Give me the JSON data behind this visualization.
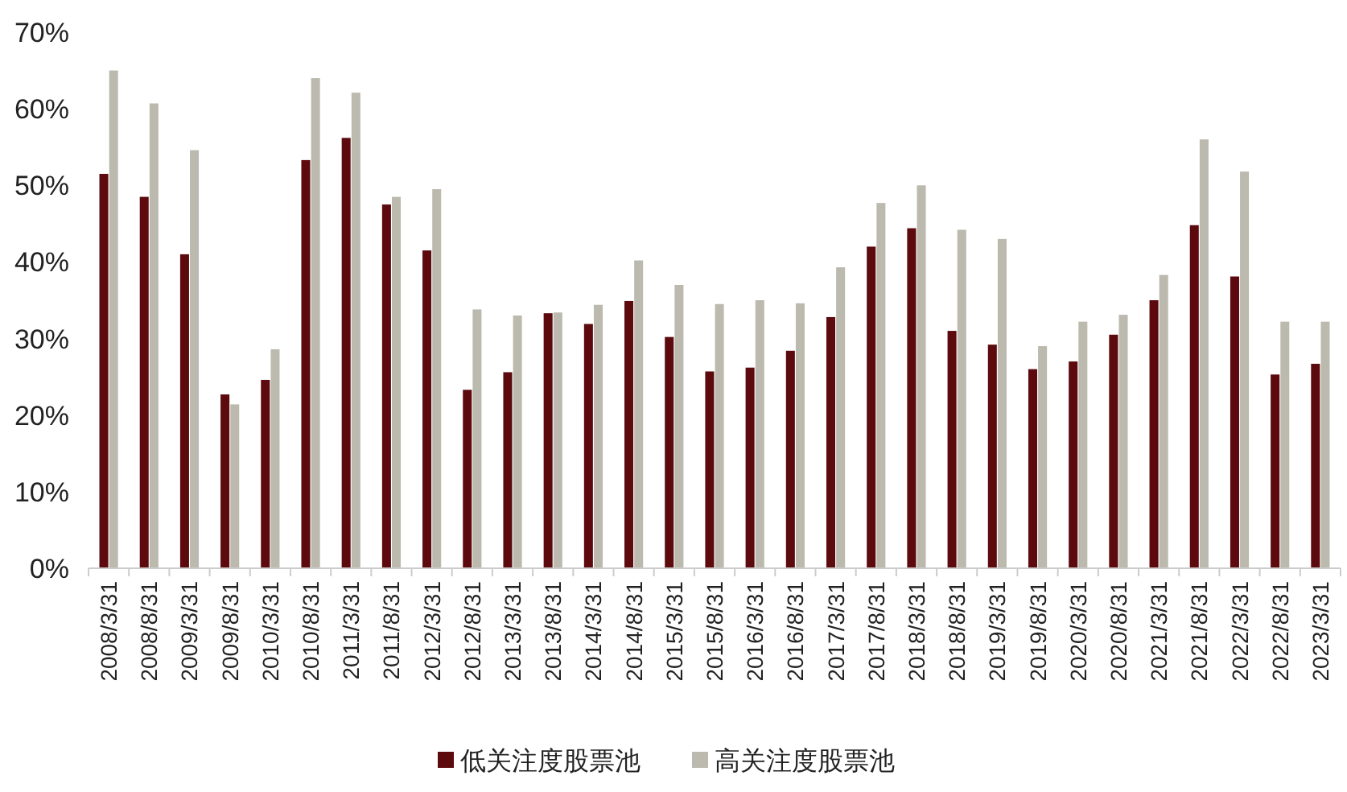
{
  "chart_data": {
    "type": "bar",
    "categories": [
      "2008/3/31",
      "2008/8/31",
      "2009/3/31",
      "2009/8/31",
      "2010/3/31",
      "2010/8/31",
      "2011/3/31",
      "2011/8/31",
      "2012/3/31",
      "2012/8/31",
      "2013/3/31",
      "2013/8/31",
      "2014/3/31",
      "2014/8/31",
      "2015/3/31",
      "2015/8/31",
      "2016/3/31",
      "2016/8/31",
      "2017/3/31",
      "2017/8/31",
      "2018/3/31",
      "2018/8/31",
      "2019/3/31",
      "2019/8/31",
      "2020/3/31",
      "2020/8/31",
      "2021/3/31",
      "2021/8/31",
      "2022/3/31",
      "2022/8/31",
      "2023/3/31"
    ],
    "series": [
      {
        "name": "低关注度股票池",
        "color": "#5c0a0e",
        "values": [
          51.5,
          48.5,
          41,
          22.7,
          24.6,
          53.3,
          56.2,
          47.5,
          41.5,
          23.3,
          25.6,
          33.3,
          31.9,
          34.9,
          30.2,
          25.7,
          26.2,
          28.4,
          32.8,
          42,
          44.4,
          31,
          29.2,
          26,
          27,
          30.5,
          35,
          44.8,
          38.1,
          25.3,
          26.7
        ]
      },
      {
        "name": "高关注度股票池",
        "color": "#bcbaae",
        "values": [
          65,
          60.7,
          54.6,
          21.4,
          28.6,
          64,
          62.1,
          48.5,
          49.5,
          33.8,
          33,
          33.4,
          34.4,
          40.2,
          37,
          34.5,
          35,
          34.6,
          39.3,
          47.7,
          50,
          44.2,
          43,
          29,
          32.2,
          33.1,
          38.3,
          56,
          51.8,
          32.2,
          32.2
        ]
      }
    ],
    "ylim": [
      0,
      70
    ],
    "yticks": [
      {
        "value": 0,
        "label": "0%"
      },
      {
        "value": 10,
        "label": "10%"
      },
      {
        "value": 20,
        "label": "20%"
      },
      {
        "value": 30,
        "label": "30%"
      },
      {
        "value": 40,
        "label": "40%"
      },
      {
        "value": 50,
        "label": "50%"
      },
      {
        "value": 60,
        "label": "60%"
      },
      {
        "value": 70,
        "label": "70%"
      }
    ],
    "legend": "bottom"
  }
}
